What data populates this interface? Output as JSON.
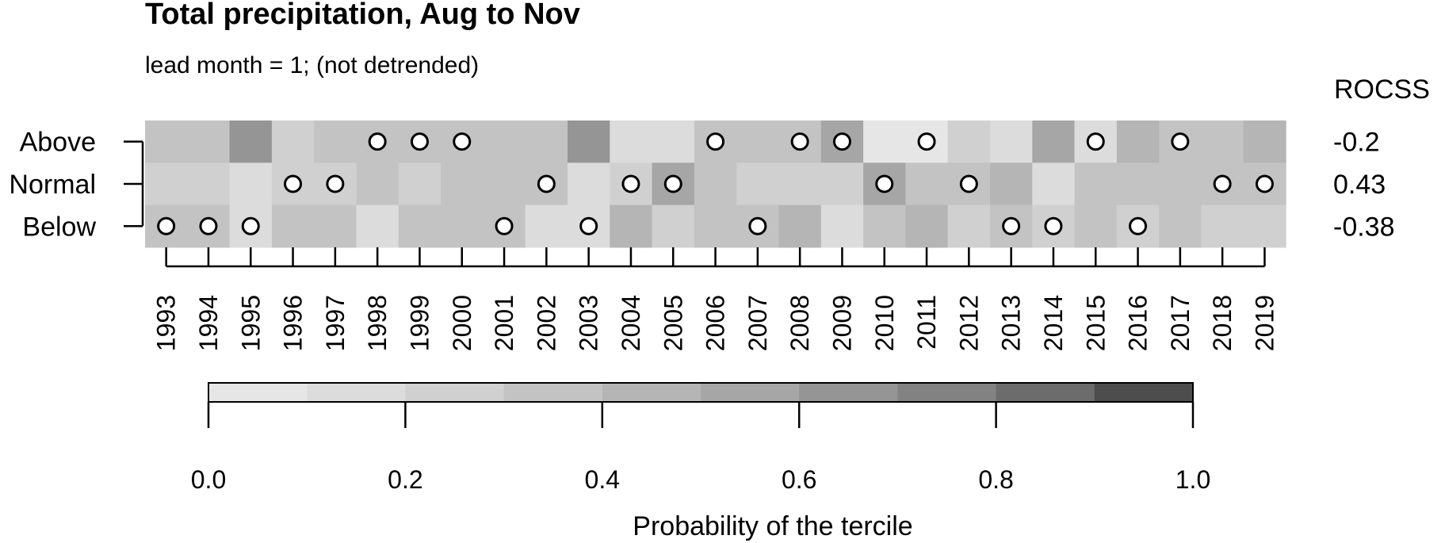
{
  "chart_data": {
    "type": "heatmap",
    "title": "Total precipitation, Aug to Nov",
    "subtitle": "lead month = 1; (not detrended)",
    "rows": [
      "Above",
      "Normal",
      "Below"
    ],
    "years": [
      "1993",
      "1994",
      "1995",
      "1996",
      "1997",
      "1998",
      "1999",
      "2000",
      "2001",
      "2002",
      "2003",
      "2004",
      "2005",
      "2006",
      "2007",
      "2008",
      "2009",
      "2010",
      "2011",
      "2012",
      "2013",
      "2014",
      "2015",
      "2016",
      "2017",
      "2018",
      "2019"
    ],
    "probabilities": {
      "Above": [
        0.35,
        0.35,
        0.65,
        0.25,
        0.35,
        0.35,
        0.35,
        0.35,
        0.35,
        0.35,
        0.65,
        0.15,
        0.15,
        0.35,
        0.35,
        0.35,
        0.55,
        0.05,
        0.05,
        0.25,
        0.15,
        0.55,
        0.15,
        0.45,
        0.35,
        0.35,
        0.45
      ],
      "Normal": [
        0.25,
        0.25,
        0.15,
        0.25,
        0.25,
        0.35,
        0.25,
        0.35,
        0.35,
        0.35,
        0.15,
        0.25,
        0.55,
        0.35,
        0.25,
        0.25,
        0.25,
        0.55,
        0.35,
        0.35,
        0.45,
        0.15,
        0.35,
        0.35,
        0.35,
        0.35,
        0.35
      ],
      "Below": [
        0.35,
        0.35,
        0.15,
        0.35,
        0.35,
        0.15,
        0.35,
        0.35,
        0.35,
        0.15,
        0.15,
        0.45,
        0.25,
        0.35,
        0.35,
        0.45,
        0.15,
        0.35,
        0.45,
        0.25,
        0.35,
        0.25,
        0.35,
        0.25,
        0.35,
        0.25,
        0.25
      ]
    },
    "observed_tercile": [
      "Below",
      "Below",
      "Below",
      "Normal",
      "Normal",
      "Above",
      "Above",
      "Above",
      "Below",
      "Normal",
      "Below",
      "Normal",
      "Normal",
      "Above",
      "Below",
      "Above",
      "Above",
      "Normal",
      "Above",
      "Normal",
      "Below",
      "Below",
      "Above",
      "Below",
      "Above",
      "Normal",
      "Normal"
    ],
    "rocss": {
      "header": "ROCSS",
      "values": [
        "-0.2",
        "0.43",
        "-0.38"
      ]
    },
    "colorbar": {
      "xlabel": "Probability of the tercile",
      "range": [
        0,
        1
      ],
      "ticks": [
        "0.0",
        "0.2",
        "0.4",
        "0.6",
        "0.8",
        "1.0"
      ],
      "levels": 10,
      "colors": [
        "#e6e6e6",
        "#dcdcdc",
        "#d0d0d0",
        "#c3c3c3",
        "#b5b5b5",
        "#a6a6a6",
        "#959595",
        "#828282",
        "#6c6c6c",
        "#4d4d4d"
      ]
    },
    "grid": false,
    "legend": "bottom"
  }
}
